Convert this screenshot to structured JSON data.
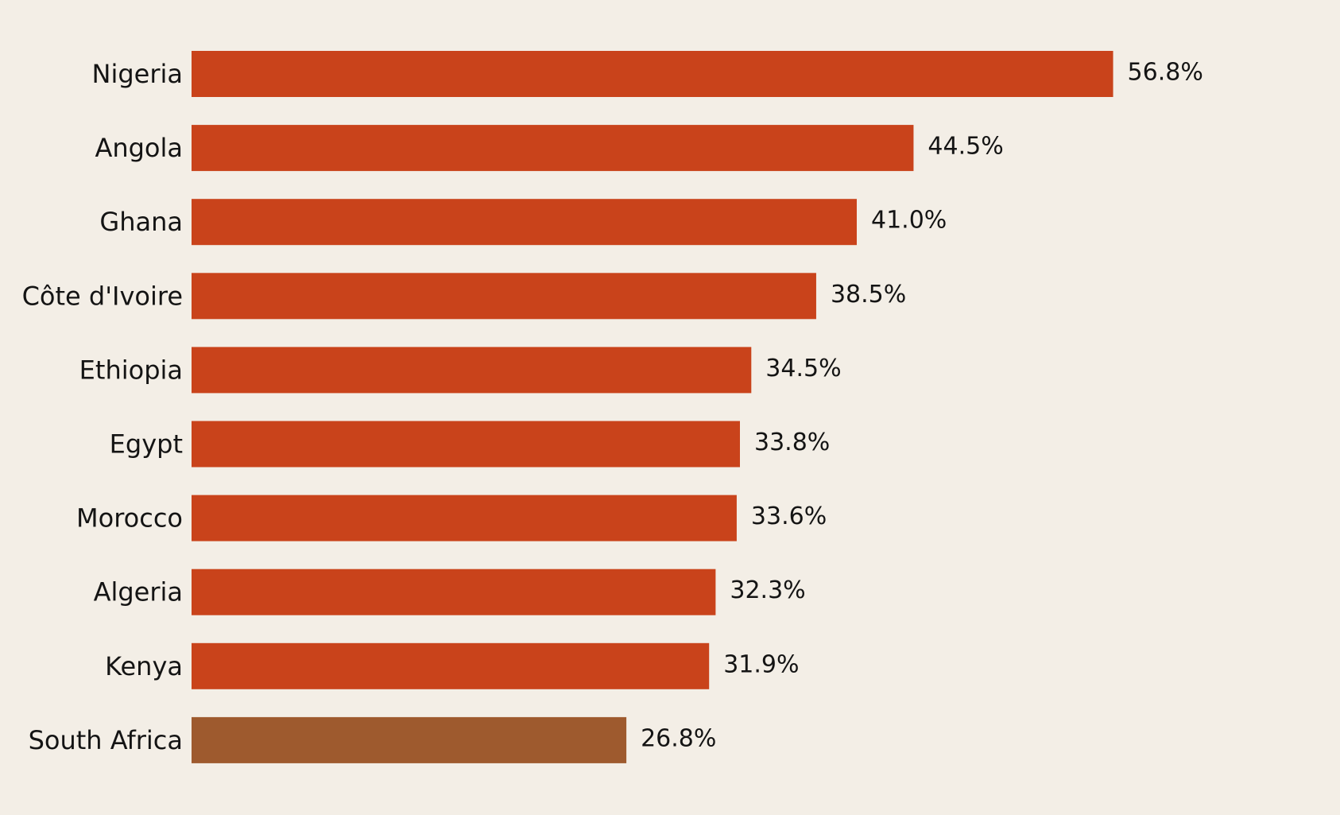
{
  "colors": {
    "background": "#f3eee6",
    "bar_default": "#c9431b",
    "bar_highlight": "#9e5a2e",
    "text": "#141414"
  },
  "chart_data": {
    "type": "bar",
    "orientation": "horizontal",
    "title": "",
    "xlabel": "",
    "ylabel": "",
    "categories": [
      "Nigeria",
      "Angola",
      "Ghana",
      "Côte d'Ivoire",
      "Ethiopia",
      "Egypt",
      "Morocco",
      "Algeria",
      "Kenya",
      "South Africa"
    ],
    "values": [
      56.8,
      44.5,
      41.0,
      38.5,
      34.5,
      33.8,
      33.6,
      32.3,
      31.9,
      26.8
    ],
    "value_labels": [
      "56.8%",
      "44.5%",
      "41.0%",
      "38.5%",
      "34.5%",
      "33.8%",
      "33.6%",
      "32.3%",
      "31.9%",
      "26.8%"
    ],
    "highlight": [
      "South Africa"
    ],
    "xlim": [
      0,
      70
    ],
    "grid": false,
    "legend": "none"
  }
}
